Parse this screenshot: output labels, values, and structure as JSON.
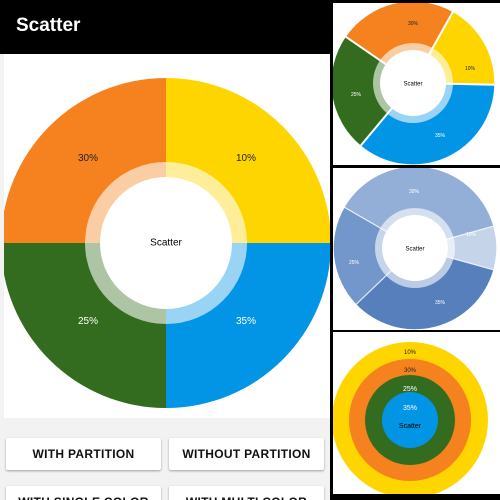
{
  "app": {
    "title": "Scatter"
  },
  "main_chart": {
    "center_label": "Scatter",
    "colors": {
      "orange": "#f5821f",
      "yellow": "#ffd500",
      "green": "#336c1e",
      "blue": "#0295e6"
    }
  },
  "buttons": {
    "with_partition": "WITH PARTITION",
    "without_partition": "WITHOUT PARTITION",
    "with_single_color": "WITH SINGLE COLOR",
    "with_multi_color": "WITH MULTI COLOR"
  },
  "previews": {
    "partition_center_label": "Scatter",
    "single_color_center_label": "Scatter",
    "multi_color_center_label": "Scatter",
    "single_color_accent": "#6f92c5"
  },
  "chart_data": [
    {
      "type": "pie",
      "variant": "donut",
      "categories": [
        "Orange",
        "Yellow",
        "Blue",
        "Green"
      ],
      "values": [
        30,
        10,
        35,
        25
      ],
      "labels": [
        "30%",
        "10%",
        "35%",
        "25%"
      ],
      "colors": [
        "#f5821f",
        "#ffd500",
        "#0295e6",
        "#336c1e"
      ],
      "title": "Scatter"
    }
  ]
}
